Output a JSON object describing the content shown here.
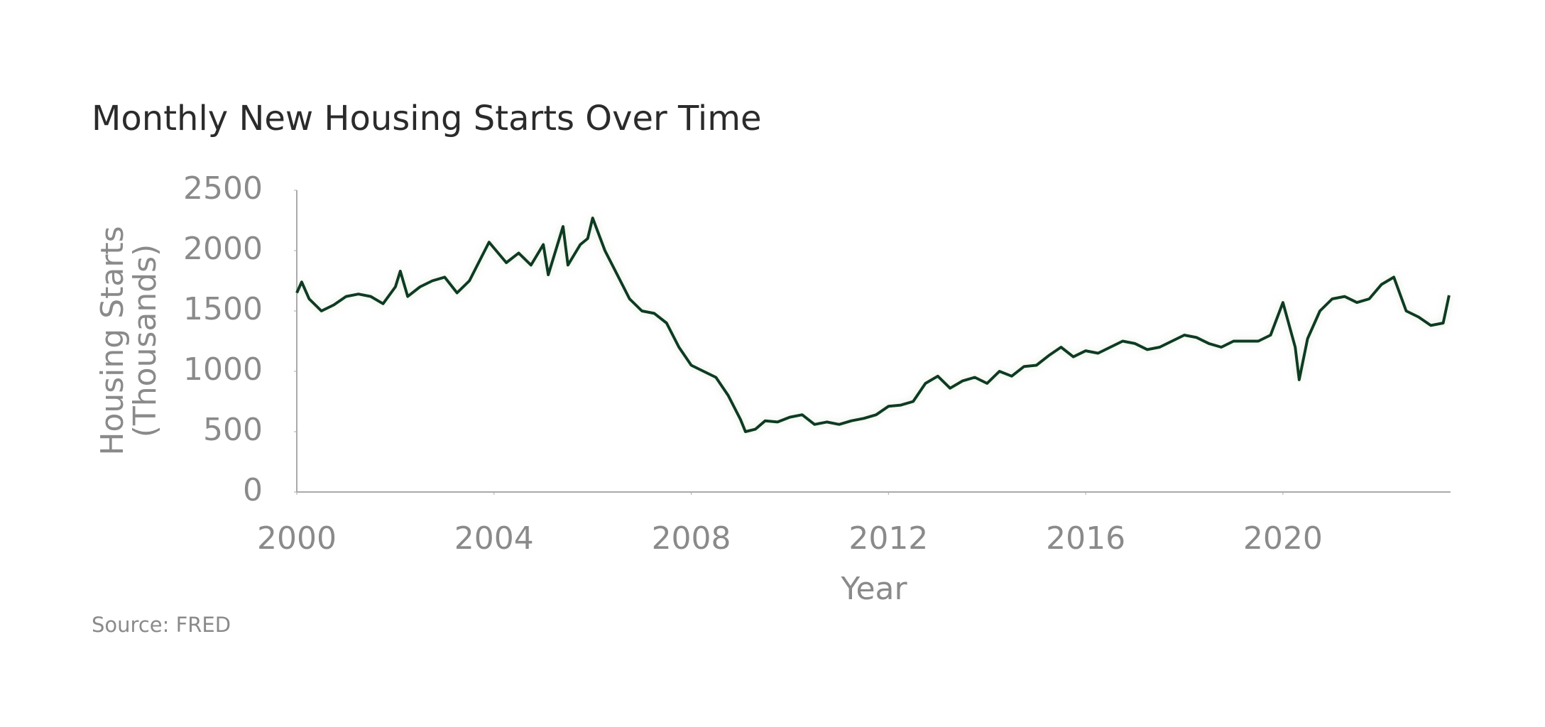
{
  "chart_data": {
    "type": "line",
    "title": "Monthly New Housing Starts Over Time",
    "x_label": "Year",
    "y_label": "Housing Starts (Thousands)",
    "source": "Source: FRED",
    "color": "#0d3b24",
    "x": [
      2000,
      2000.1,
      2000.25,
      2000.5,
      2000.75,
      2001,
      2001.25,
      2001.5,
      2001.75,
      2002,
      2002.1,
      2002.25,
      2002.5,
      2002.75,
      2003,
      2003.25,
      2003.5,
      2003.75,
      2003.9,
      2004.25,
      2004.5,
      2004.75,
      2005,
      2005.1,
      2005.4,
      2005.5,
      2005.75,
      2005.9,
      2006,
      2006.25,
      2006.5,
      2006.75,
      2007,
      2007.25,
      2007.5,
      2007.75,
      2008,
      2008.25,
      2008.5,
      2008.75,
      2009,
      2009.1,
      2009.3,
      2009.5,
      2009.75,
      2010,
      2010.25,
      2010.5,
      2010.75,
      2011,
      2011.25,
      2011.5,
      2011.75,
      2012,
      2012.25,
      2012.5,
      2012.75,
      2013,
      2013.25,
      2013.5,
      2013.75,
      2014,
      2014.25,
      2014.5,
      2014.75,
      2015,
      2015.25,
      2015.5,
      2015.75,
      2016,
      2016.25,
      2016.5,
      2016.75,
      2017,
      2017.25,
      2017.5,
      2017.75,
      2018,
      2018.25,
      2018.5,
      2018.75,
      2019,
      2019.25,
      2019.5,
      2019.75,
      2020,
      2020.25,
      2020.33,
      2020.5,
      2020.75,
      2021,
      2021.25,
      2021.5,
      2021.75,
      2022,
      2022.25,
      2022.5,
      2022.75,
      2023,
      2023.25,
      2023.37
    ],
    "values": [
      1650,
      1740,
      1600,
      1500,
      1550,
      1620,
      1640,
      1620,
      1560,
      1700,
      1830,
      1620,
      1700,
      1750,
      1780,
      1650,
      1750,
      1950,
      2070,
      1900,
      1980,
      1880,
      2050,
      1800,
      2200,
      1880,
      2050,
      2100,
      2270,
      2000,
      1800,
      1600,
      1500,
      1480,
      1400,
      1200,
      1050,
      1000,
      950,
      800,
      600,
      500,
      520,
      590,
      580,
      620,
      640,
      560,
      580,
      560,
      590,
      610,
      640,
      710,
      720,
      750,
      900,
      960,
      860,
      920,
      950,
      900,
      1000,
      960,
      1040,
      1050,
      1130,
      1200,
      1120,
      1170,
      1150,
      1200,
      1250,
      1230,
      1180,
      1200,
      1250,
      1300,
      1280,
      1230,
      1200,
      1250,
      1250,
      1250,
      1300,
      1570,
      1200,
      930,
      1270,
      1500,
      1600,
      1620,
      1570,
      1600,
      1720,
      1780,
      1500,
      1450,
      1380,
      1400,
      1630
    ],
    "xlim": [
      2000,
      2023.4
    ],
    "ylim": [
      0,
      2500
    ],
    "xticks": [
      2000,
      2004,
      2008,
      2012,
      2016,
      2020
    ],
    "yticks": [
      0,
      500,
      1000,
      1500,
      2000,
      2500
    ],
    "grid": false
  }
}
